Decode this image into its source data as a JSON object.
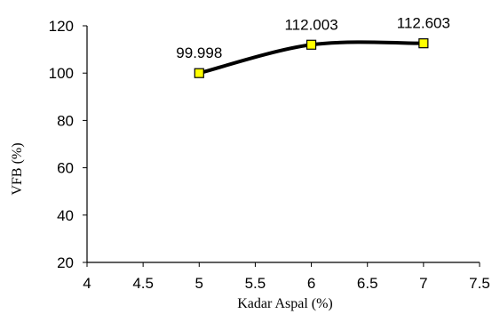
{
  "chart_data": {
    "type": "line",
    "title": "",
    "xlabel": "Kadar Aspal (%)",
    "ylabel": "VFB (%)",
    "xlim": [
      4,
      7.5
    ],
    "ylim": [
      20,
      120
    ],
    "x_ticks": [
      "4",
      "4.5",
      "5",
      "5.5",
      "6",
      "6.5",
      "7",
      "7.5"
    ],
    "y_ticks": [
      "20",
      "40",
      "60",
      "80",
      "100",
      "120"
    ],
    "grid": false,
    "legend": "none",
    "series": [
      {
        "x": [
          5,
          6,
          7
        ],
        "values": [
          99.998,
          112.003,
          112.603
        ],
        "data_labels": [
          "99.998",
          "112.003",
          "112.603"
        ],
        "line_color": "#000000",
        "marker": "square",
        "marker_color": "#ffff00",
        "smooth": true
      }
    ]
  }
}
